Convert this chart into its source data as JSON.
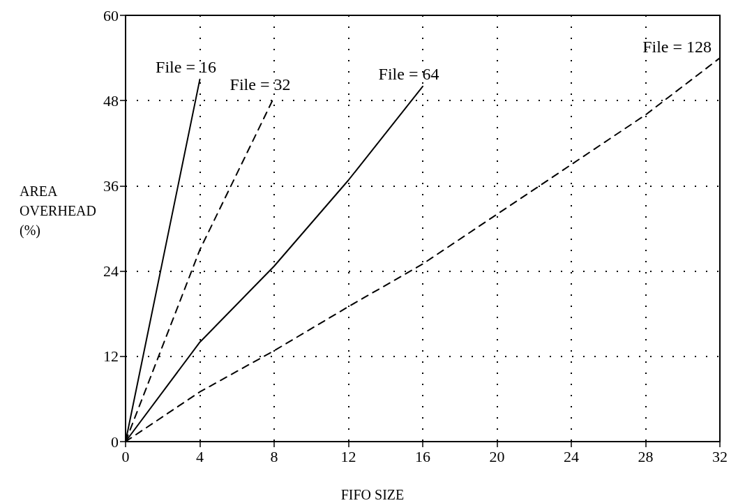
{
  "chart_data": {
    "type": "line",
    "xlabel": "FIFO SIZE",
    "ylabel": "AREA\nOVERHEAD\n(%)",
    "xlim": [
      0,
      32
    ],
    "xticks": [
      0,
      4,
      8,
      12,
      16,
      20,
      24,
      28,
      32
    ],
    "ylim": [
      0,
      60
    ],
    "yticks": [
      0,
      12,
      24,
      36,
      48,
      60
    ],
    "grid": true,
    "legend": false,
    "marker": "none",
    "series": [
      {
        "name": "File = 16",
        "color": "#000000",
        "line_style": "solid",
        "x": [
          0,
          4
        ],
        "values": [
          0,
          51
        ]
      },
      {
        "name": "File = 32",
        "color": "#000000",
        "line_style": "dashed",
        "x": [
          0,
          4,
          8
        ],
        "values": [
          0,
          27,
          48.5
        ]
      },
      {
        "name": "File = 64",
        "color": "#000000",
        "line_style": "solid",
        "x": [
          0,
          4,
          8,
          12,
          16
        ],
        "values": [
          0,
          14,
          24.7,
          36.8,
          50
        ]
      },
      {
        "name": "File = 128",
        "color": "#000000",
        "line_style": "dashed",
        "x": [
          0,
          4,
          8,
          12,
          16,
          20,
          24,
          28,
          32
        ],
        "values": [
          0,
          7,
          12.8,
          19,
          25,
          32,
          39,
          46,
          54
        ]
      }
    ]
  }
}
